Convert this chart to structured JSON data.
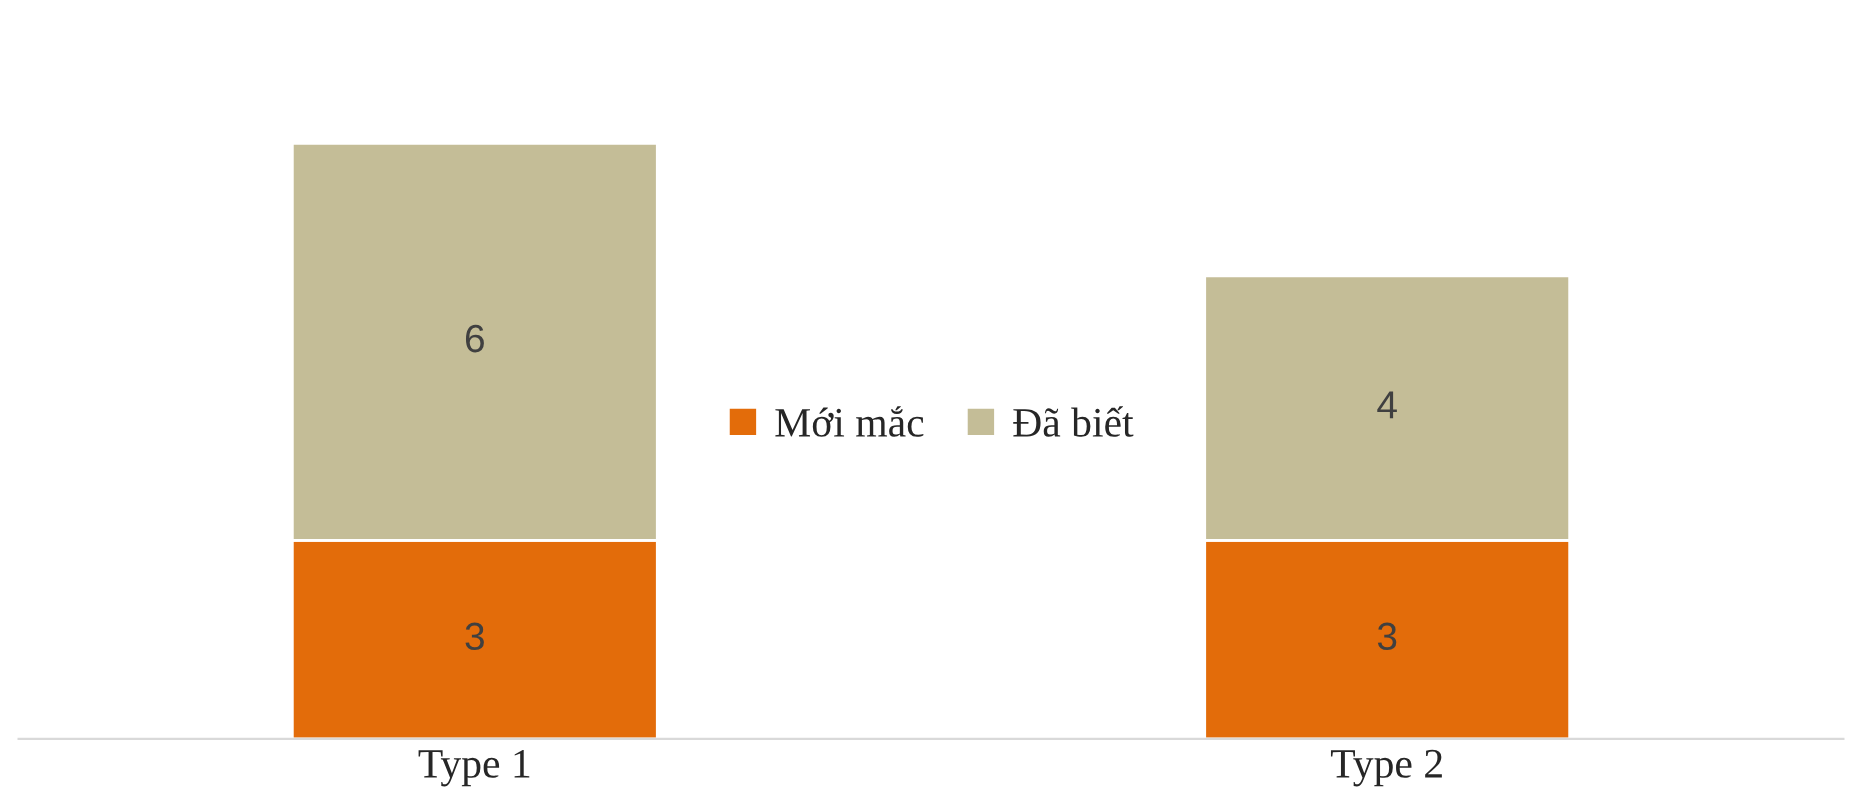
{
  "chart_data": {
    "type": "bar",
    "stacked": true,
    "categories": [
      "Type 1",
      "Type 2"
    ],
    "series": [
      {
        "name": "Mới mắc",
        "color": "#e36c0a",
        "values": [
          3,
          3
        ]
      },
      {
        "name": "Đã biết",
        "color": "#c4bd97",
        "values": [
          6,
          4
        ]
      }
    ],
    "data_labels": true,
    "legend": "center",
    "grid": false,
    "tick_labels": "x"
  }
}
